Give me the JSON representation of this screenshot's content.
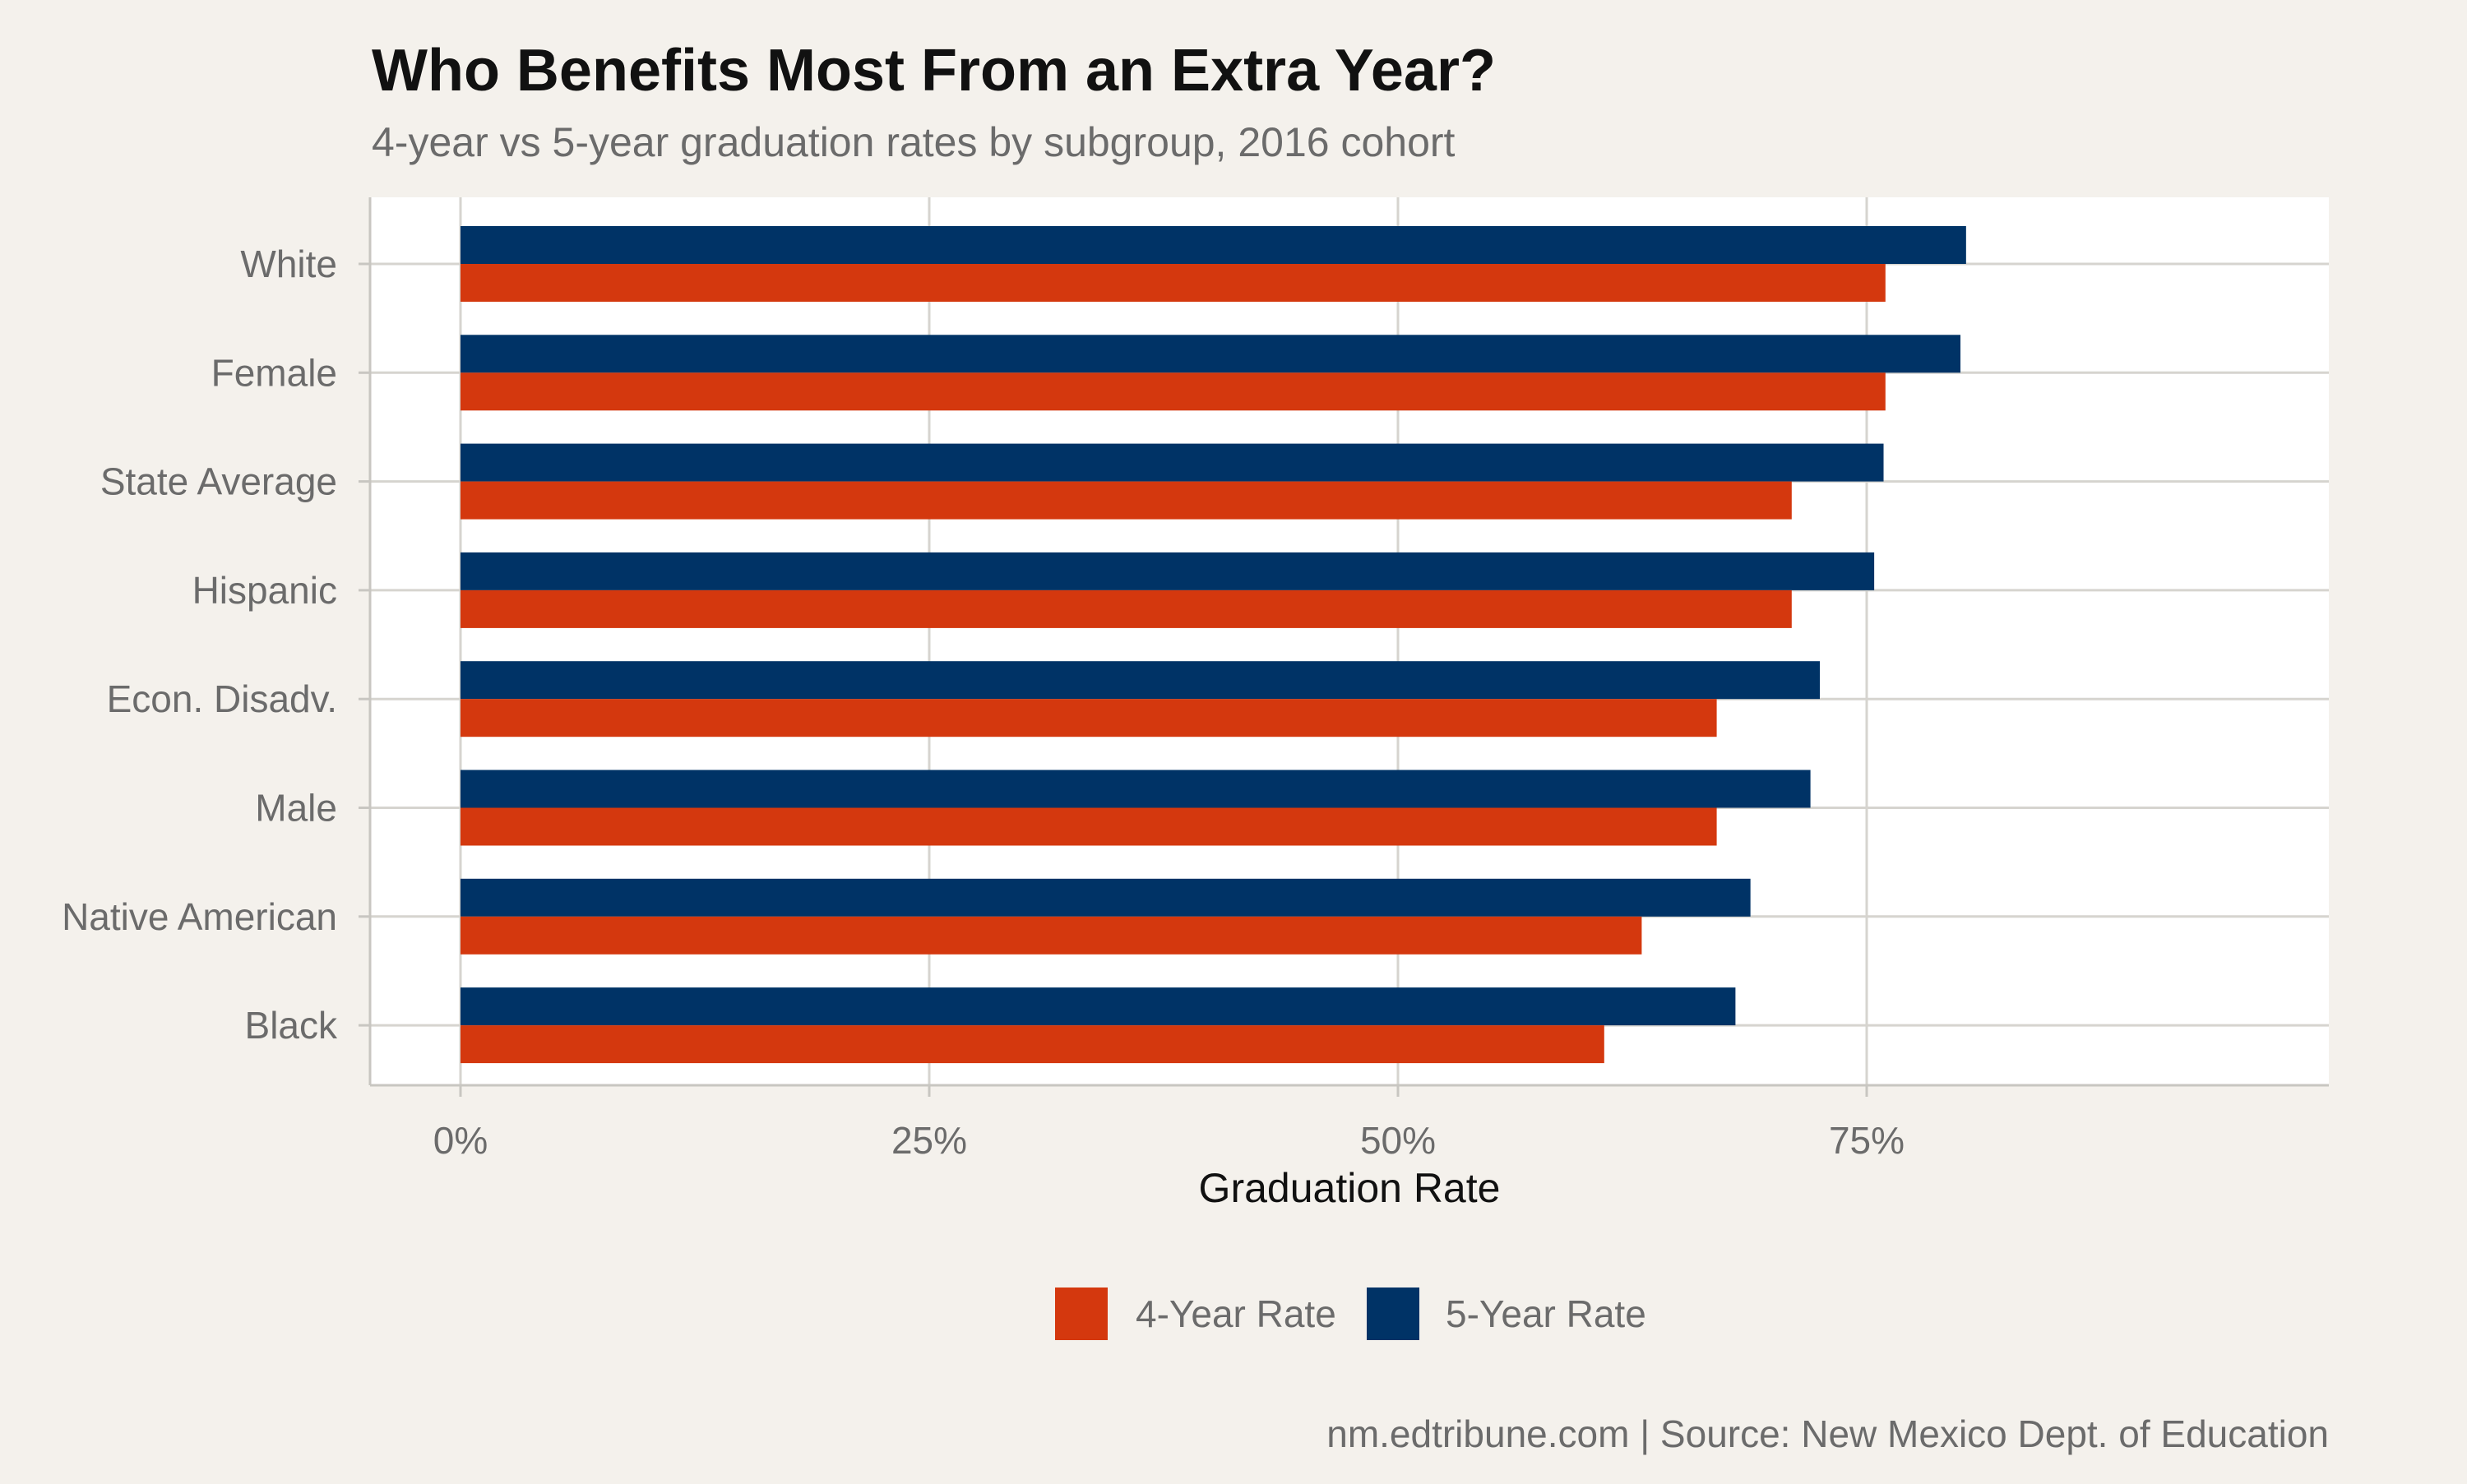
{
  "chart_data": {
    "type": "bar",
    "orientation": "horizontal",
    "title": "Who Benefits Most From an Extra Year?",
    "subtitle": "4-year vs 5-year graduation rates by subgroup, 2016 cohort",
    "xlabel": "Graduation Rate",
    "ylabel": "",
    "xlim": [
      0,
      100
    ],
    "x_ticks": [
      0,
      25,
      50,
      75
    ],
    "x_tick_labels": [
      "0%",
      "25%",
      "50%",
      "75%"
    ],
    "categories": [
      "White",
      "Female",
      "State Average",
      "Hispanic",
      "Econ. Disadv.",
      "Male",
      "Native American",
      "Black"
    ],
    "series": [
      {
        "name": "4-Year Rate",
        "color": "#d4380e",
        "values": [
          76,
          76,
          71,
          71,
          67,
          67,
          63,
          61
        ]
      },
      {
        "name": "5-Year Rate",
        "color": "#003366",
        "values": [
          80.3,
          80,
          75.9,
          75.4,
          72.5,
          72,
          68.8,
          68
        ]
      }
    ],
    "legend_position": "bottom",
    "grid": true,
    "caption": "nm.edtribune.com | Source: New Mexico Dept. of Education"
  }
}
